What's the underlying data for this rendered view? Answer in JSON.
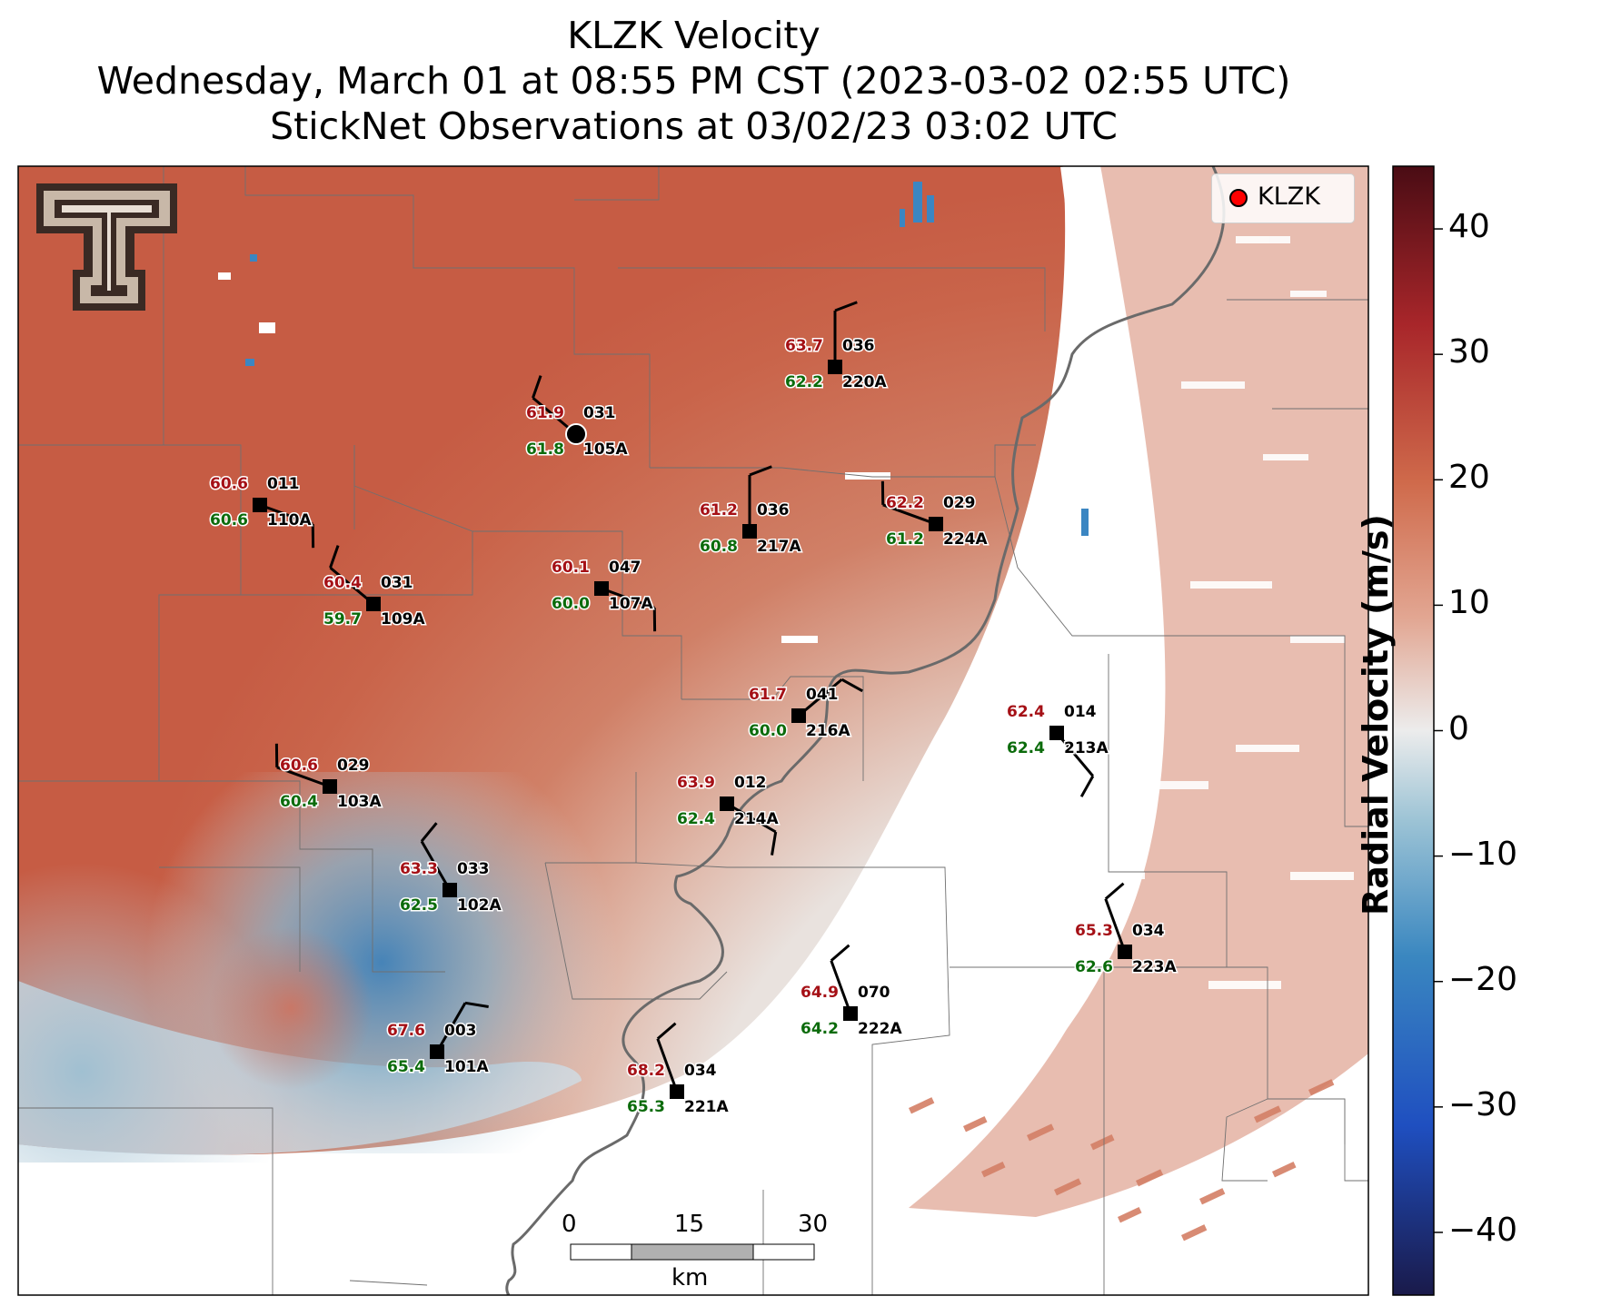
{
  "title": {
    "line1": "KLZK Velocity",
    "line2": "Wednesday, March 01 at 08:55 PM CST (2023-03-02 02:55 UTC)",
    "line3": "StickNet Observations at 03/02/23 03:02 UTC"
  },
  "legend": {
    "label": "KLZK",
    "marker_color": "#ff0000"
  },
  "colorbar": {
    "label": "Radial Velocity (m/s)",
    "ticks": [
      "40",
      "30",
      "20",
      "10",
      "0",
      "−10",
      "−20",
      "−30",
      "−40"
    ],
    "range": [
      -45,
      45
    ],
    "colors": [
      "#1a1a4a",
      "#1f4fc0",
      "#3a87c0",
      "#9cc3d5",
      "#ececec",
      "#e2a692",
      "#cf6a4b",
      "#a8262a",
      "#4a0c14"
    ]
  },
  "scalebar": {
    "ticks": [
      "0",
      "15",
      "30"
    ],
    "unit": "km"
  },
  "logo": {
    "name": "Texas Tech Double T",
    "colors": [
      "#c8b8a8",
      "#3a2a24"
    ]
  },
  "stations": [
    {
      "id": "101A",
      "temp": "67.6",
      "dew": "65.4",
      "dir": "003"
    },
    {
      "id": "102A",
      "temp": "63.3",
      "dew": "62.5",
      "dir": "033"
    },
    {
      "id": "103A",
      "temp": "60.6",
      "dew": "60.4",
      "dir": "029"
    },
    {
      "id": "105A",
      "temp": "61.9",
      "dew": "61.8",
      "dir": "031"
    },
    {
      "id": "107A",
      "temp": "60.1",
      "dew": "60.0",
      "dir": "047"
    },
    {
      "id": "109A",
      "temp": "60.4",
      "dew": "59.7",
      "dir": "031"
    },
    {
      "id": "110A",
      "temp": "60.6",
      "dew": "60.6",
      "dir": "011"
    },
    {
      "id": "213A",
      "temp": "62.4",
      "dew": "62.4",
      "dir": "014"
    },
    {
      "id": "214A",
      "temp": "63.9",
      "dew": "62.4",
      "dir": "012"
    },
    {
      "id": "216A",
      "temp": "61.7",
      "dew": "60.0",
      "dir": "041"
    },
    {
      "id": "217A",
      "temp": "61.2",
      "dew": "60.8",
      "dir": "036"
    },
    {
      "id": "220A",
      "temp": "63.7",
      "dew": "62.2",
      "dir": "036"
    },
    {
      "id": "221A",
      "temp": "68.2",
      "dew": "65.3",
      "dir": "034"
    },
    {
      "id": "222A",
      "temp": "64.9",
      "dew": "64.2",
      "dir": "070"
    },
    {
      "id": "223A",
      "temp": "65.3",
      "dew": "62.6",
      "dir": "034"
    },
    {
      "id": "224A",
      "temp": "62.2",
      "dew": "61.2",
      "dir": "029"
    }
  ]
}
